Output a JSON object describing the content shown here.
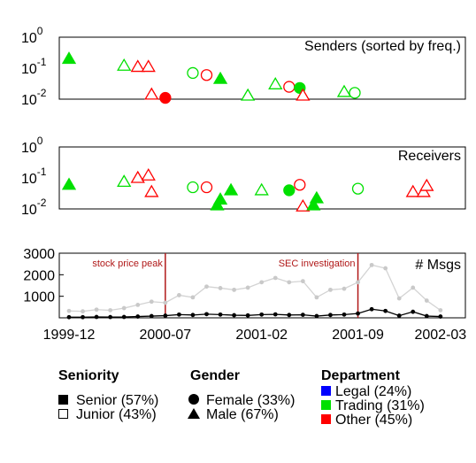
{
  "chart_data": [
    {
      "type": "scatter",
      "title": "Senders (sorted by freq.)",
      "yscale": "log",
      "ylim": [
        0.01,
        1
      ],
      "yticks": [
        {
          "base": "10",
          "exp": "0"
        },
        {
          "base": "10",
          "exp": "-1"
        },
        {
          "base": "10",
          "exp": "-2"
        }
      ],
      "points": [
        {
          "x": "1999-12",
          "y": 0.2,
          "gender": "male",
          "seniority": "senior",
          "dept": "trading"
        },
        {
          "x": "2000-04",
          "y": 0.12,
          "gender": "male",
          "seniority": "junior",
          "dept": "trading"
        },
        {
          "x": "2000-05",
          "y": 0.11,
          "gender": "male",
          "seniority": "junior",
          "dept": "other"
        },
        {
          "x": "2000-05",
          "y": 0.11,
          "gender": "male",
          "seniority": "junior",
          "dept": "other"
        },
        {
          "x": "2000-06",
          "y": 0.014,
          "gender": "male",
          "seniority": "junior",
          "dept": "other"
        },
        {
          "x": "2000-07",
          "y": 0.011,
          "gender": "female",
          "seniority": "senior",
          "dept": "other"
        },
        {
          "x": "2000-09",
          "y": 0.07,
          "gender": "female",
          "seniority": "junior",
          "dept": "trading"
        },
        {
          "x": "2000-10",
          "y": 0.06,
          "gender": "female",
          "seniority": "junior",
          "dept": "other"
        },
        {
          "x": "2000-11",
          "y": 0.045,
          "gender": "male",
          "seniority": "senior",
          "dept": "trading"
        },
        {
          "x": "2001-01",
          "y": 0.013,
          "gender": "male",
          "seniority": "junior",
          "dept": "trading"
        },
        {
          "x": "2001-03",
          "y": 0.03,
          "gender": "male",
          "seniority": "junior",
          "dept": "trading"
        },
        {
          "x": "2001-04",
          "y": 0.025,
          "gender": "female",
          "seniority": "junior",
          "dept": "other"
        },
        {
          "x": "2001-04",
          "y": 0.023,
          "gender": "female",
          "seniority": "senior",
          "dept": "trading"
        },
        {
          "x": "2001-05",
          "y": 0.013,
          "gender": "male",
          "seniority": "junior",
          "dept": "other"
        },
        {
          "x": "2001-08",
          "y": 0.017,
          "gender": "male",
          "seniority": "junior",
          "dept": "trading"
        },
        {
          "x": "2001-08",
          "y": 0.016,
          "gender": "female",
          "seniority": "junior",
          "dept": "trading"
        }
      ]
    },
    {
      "type": "scatter",
      "title": "Receivers",
      "yscale": "log",
      "ylim": [
        0.01,
        1
      ],
      "yticks": [
        {
          "base": "10",
          "exp": "0"
        },
        {
          "base": "10",
          "exp": "-1"
        },
        {
          "base": "10",
          "exp": "-2"
        }
      ],
      "points": [
        {
          "x": "1999-12",
          "y": 0.06,
          "gender": "male",
          "seniority": "senior",
          "dept": "trading"
        },
        {
          "x": "2000-04",
          "y": 0.075,
          "gender": "male",
          "seniority": "junior",
          "dept": "trading"
        },
        {
          "x": "2000-05",
          "y": 0.1,
          "gender": "male",
          "seniority": "junior",
          "dept": "other"
        },
        {
          "x": "2000-05",
          "y": 0.12,
          "gender": "male",
          "seniority": "junior",
          "dept": "other"
        },
        {
          "x": "2000-06",
          "y": 0.035,
          "gender": "male",
          "seniority": "junior",
          "dept": "other"
        },
        {
          "x": "2000-09",
          "y": 0.05,
          "gender": "female",
          "seniority": "junior",
          "dept": "trading"
        },
        {
          "x": "2000-10",
          "y": 0.05,
          "gender": "female",
          "seniority": "junior",
          "dept": "other"
        },
        {
          "x": "2000-10",
          "y": 0.013,
          "gender": "male",
          "seniority": "senior",
          "dept": "trading"
        },
        {
          "x": "2000-11",
          "y": 0.02,
          "gender": "male",
          "seniority": "senior",
          "dept": "trading"
        },
        {
          "x": "2000-11",
          "y": 0.04,
          "gender": "male",
          "seniority": "senior",
          "dept": "trading"
        },
        {
          "x": "2001-02",
          "y": 0.04,
          "gender": "male",
          "seniority": "junior",
          "dept": "trading"
        },
        {
          "x": "2001-04",
          "y": 0.04,
          "gender": "female",
          "seniority": "senior",
          "dept": "trading"
        },
        {
          "x": "2001-04",
          "y": 0.06,
          "gender": "female",
          "seniority": "junior",
          "dept": "other"
        },
        {
          "x": "2001-05",
          "y": 0.012,
          "gender": "male",
          "seniority": "junior",
          "dept": "other"
        },
        {
          "x": "2001-05",
          "y": 0.013,
          "gender": "male",
          "seniority": "senior",
          "dept": "trading"
        },
        {
          "x": "2001-06",
          "y": 0.022,
          "gender": "male",
          "seniority": "senior",
          "dept": "trading"
        },
        {
          "x": "2001-09",
          "y": 0.045,
          "gender": "female",
          "seniority": "junior",
          "dept": "trading"
        },
        {
          "x": "2002-01",
          "y": 0.035,
          "gender": "male",
          "seniority": "junior",
          "dept": "other"
        },
        {
          "x": "2002-01",
          "y": 0.035,
          "gender": "male",
          "seniority": "junior",
          "dept": "other"
        },
        {
          "x": "2002-02",
          "y": 0.055,
          "gender": "male",
          "seniority": "junior",
          "dept": "other"
        }
      ]
    },
    {
      "type": "line",
      "title": "# Msgs",
      "ylim": [
        0,
        3000
      ],
      "yticks": [
        "1000",
        "2000",
        "3000"
      ],
      "xticks": [
        "1999-12",
        "2000-07",
        "2001-02",
        "2001-09",
        "2002-03"
      ],
      "x": [
        "1999-12",
        "2000-01",
        "2000-02",
        "2000-03",
        "2000-04",
        "2000-05",
        "2000-06",
        "2000-07",
        "2000-08",
        "2000-09",
        "2000-10",
        "2000-11",
        "2000-12",
        "2001-01",
        "2001-02",
        "2001-03",
        "2001-04",
        "2001-05",
        "2001-06",
        "2001-07",
        "2001-08",
        "2001-09",
        "2001-10",
        "2001-11",
        "2001-12",
        "2002-01",
        "2002-02",
        "2002-03"
      ],
      "series": [
        {
          "values": [
            320,
            300,
            380,
            350,
            450,
            600,
            750,
            700,
            1050,
            950,
            1450,
            1380,
            1300,
            1400,
            1650,
            1850,
            1650,
            1700,
            950,
            1300,
            1350,
            1650,
            2450,
            2300,
            900,
            1400,
            800,
            350
          ]
        },
        {
          "values": [
            30,
            30,
            40,
            35,
            40,
            60,
            80,
            100,
            150,
            130,
            170,
            150,
            120,
            110,
            150,
            160,
            130,
            140,
            80,
            130,
            150,
            200,
            400,
            320,
            100,
            280,
            80,
            60
          ]
        }
      ],
      "annotations": [
        {
          "x": "2000-07",
          "label": "stock price peak"
        },
        {
          "x": "2001-09",
          "label": "SEC investigation"
        }
      ]
    }
  ],
  "legend": {
    "seniority": {
      "heading": "Seniority",
      "items": [
        {
          "label": "Senior (57%)",
          "icon": "filled-square-icon"
        },
        {
          "label": "Junior (43%)",
          "icon": "hollow-square-icon"
        }
      ]
    },
    "gender": {
      "heading": "Gender",
      "items": [
        {
          "label": "Female (33%)",
          "icon": "circle-icon"
        },
        {
          "label": "Male (67%)",
          "icon": "triangle-icon"
        }
      ]
    },
    "department": {
      "heading": "Department",
      "items": [
        {
          "label": "Legal (24%)",
          "color": "#0000ff"
        },
        {
          "label": "Trading (31%)",
          "color": "#00e000"
        },
        {
          "label": "Other (45%)",
          "color": "#ff0000"
        }
      ]
    }
  }
}
